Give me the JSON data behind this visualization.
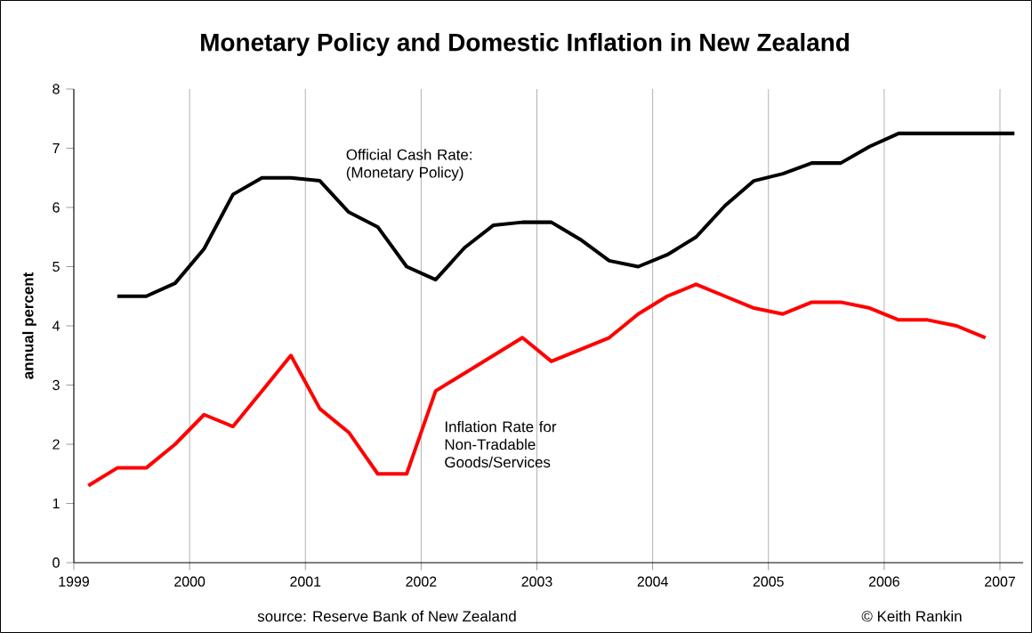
{
  "chart_data": {
    "type": "line",
    "title": "Monetary Policy and Domestic Inflation in New Zealand",
    "ylabel": "annual percent",
    "annotations": [
      "source: Reserve Bank of New Zealand",
      "© Keith Rankin"
    ],
    "series": [
      {
        "name": "Official Cash Rate: (Monetary Policy)",
        "color": "#000000",
        "x": [
          1999.375,
          1999.625,
          1999.875,
          2000.125,
          2000.375,
          2000.625,
          2000.875,
          2001.125,
          2001.375,
          2001.625,
          2001.875,
          2002.125,
          2002.375,
          2002.625,
          2002.875,
          2003.125,
          2003.375,
          2003.625,
          2003.875,
          2004.125,
          2004.375,
          2004.625,
          2004.875,
          2005.125,
          2005.375,
          2005.625,
          2005.875,
          2006.125,
          2006.375,
          2006.625,
          2006.875,
          2007.125
        ],
        "values": [
          4.5,
          4.5,
          4.72,
          5.3,
          6.22,
          6.5,
          6.5,
          6.45,
          5.92,
          5.67,
          5.0,
          4.78,
          5.32,
          5.7,
          5.75,
          5.75,
          5.46,
          5.1,
          5.0,
          5.2,
          5.5,
          6.03,
          6.45,
          6.57,
          6.75,
          6.75,
          7.03,
          7.25,
          7.25,
          7.25,
          7.25,
          7.25
        ]
      },
      {
        "name": "Inflation Rate for Non-Tradable Goods/Services",
        "color": "#ff0000",
        "x": [
          1999.125,
          1999.375,
          1999.625,
          1999.875,
          2000.125,
          2000.375,
          2000.625,
          2000.875,
          2001.125,
          2001.375,
          2001.625,
          2001.875,
          2002.125,
          2002.375,
          2002.625,
          2002.875,
          2003.125,
          2003.375,
          2003.625,
          2003.875,
          2004.125,
          2004.375,
          2004.625,
          2004.875,
          2005.125,
          2005.375,
          2005.625,
          2005.875,
          2006.125,
          2006.375,
          2006.625,
          2006.875
        ],
        "values": [
          1.3,
          1.6,
          1.6,
          2.0,
          2.5,
          2.3,
          2.9,
          3.5,
          2.6,
          2.2,
          1.5,
          1.5,
          2.9,
          3.2,
          3.5,
          3.8,
          3.4,
          3.6,
          3.8,
          4.2,
          4.5,
          4.7,
          4.5,
          4.3,
          4.2,
          4.4,
          4.4,
          4.3,
          4.1,
          4.1,
          4.0,
          3.8
        ]
      }
    ],
    "xlim": [
      1999,
      2007.2
    ],
    "xticks": [
      1999,
      2000,
      2001,
      2002,
      2003,
      2004,
      2005,
      2006,
      2007
    ],
    "ylim": [
      0,
      8
    ],
    "yticks": [
      0,
      1,
      2,
      3,
      4,
      5,
      6,
      7,
      8
    ],
    "grid": "x",
    "legend": false,
    "marker": "none",
    "line_style": "solid"
  }
}
